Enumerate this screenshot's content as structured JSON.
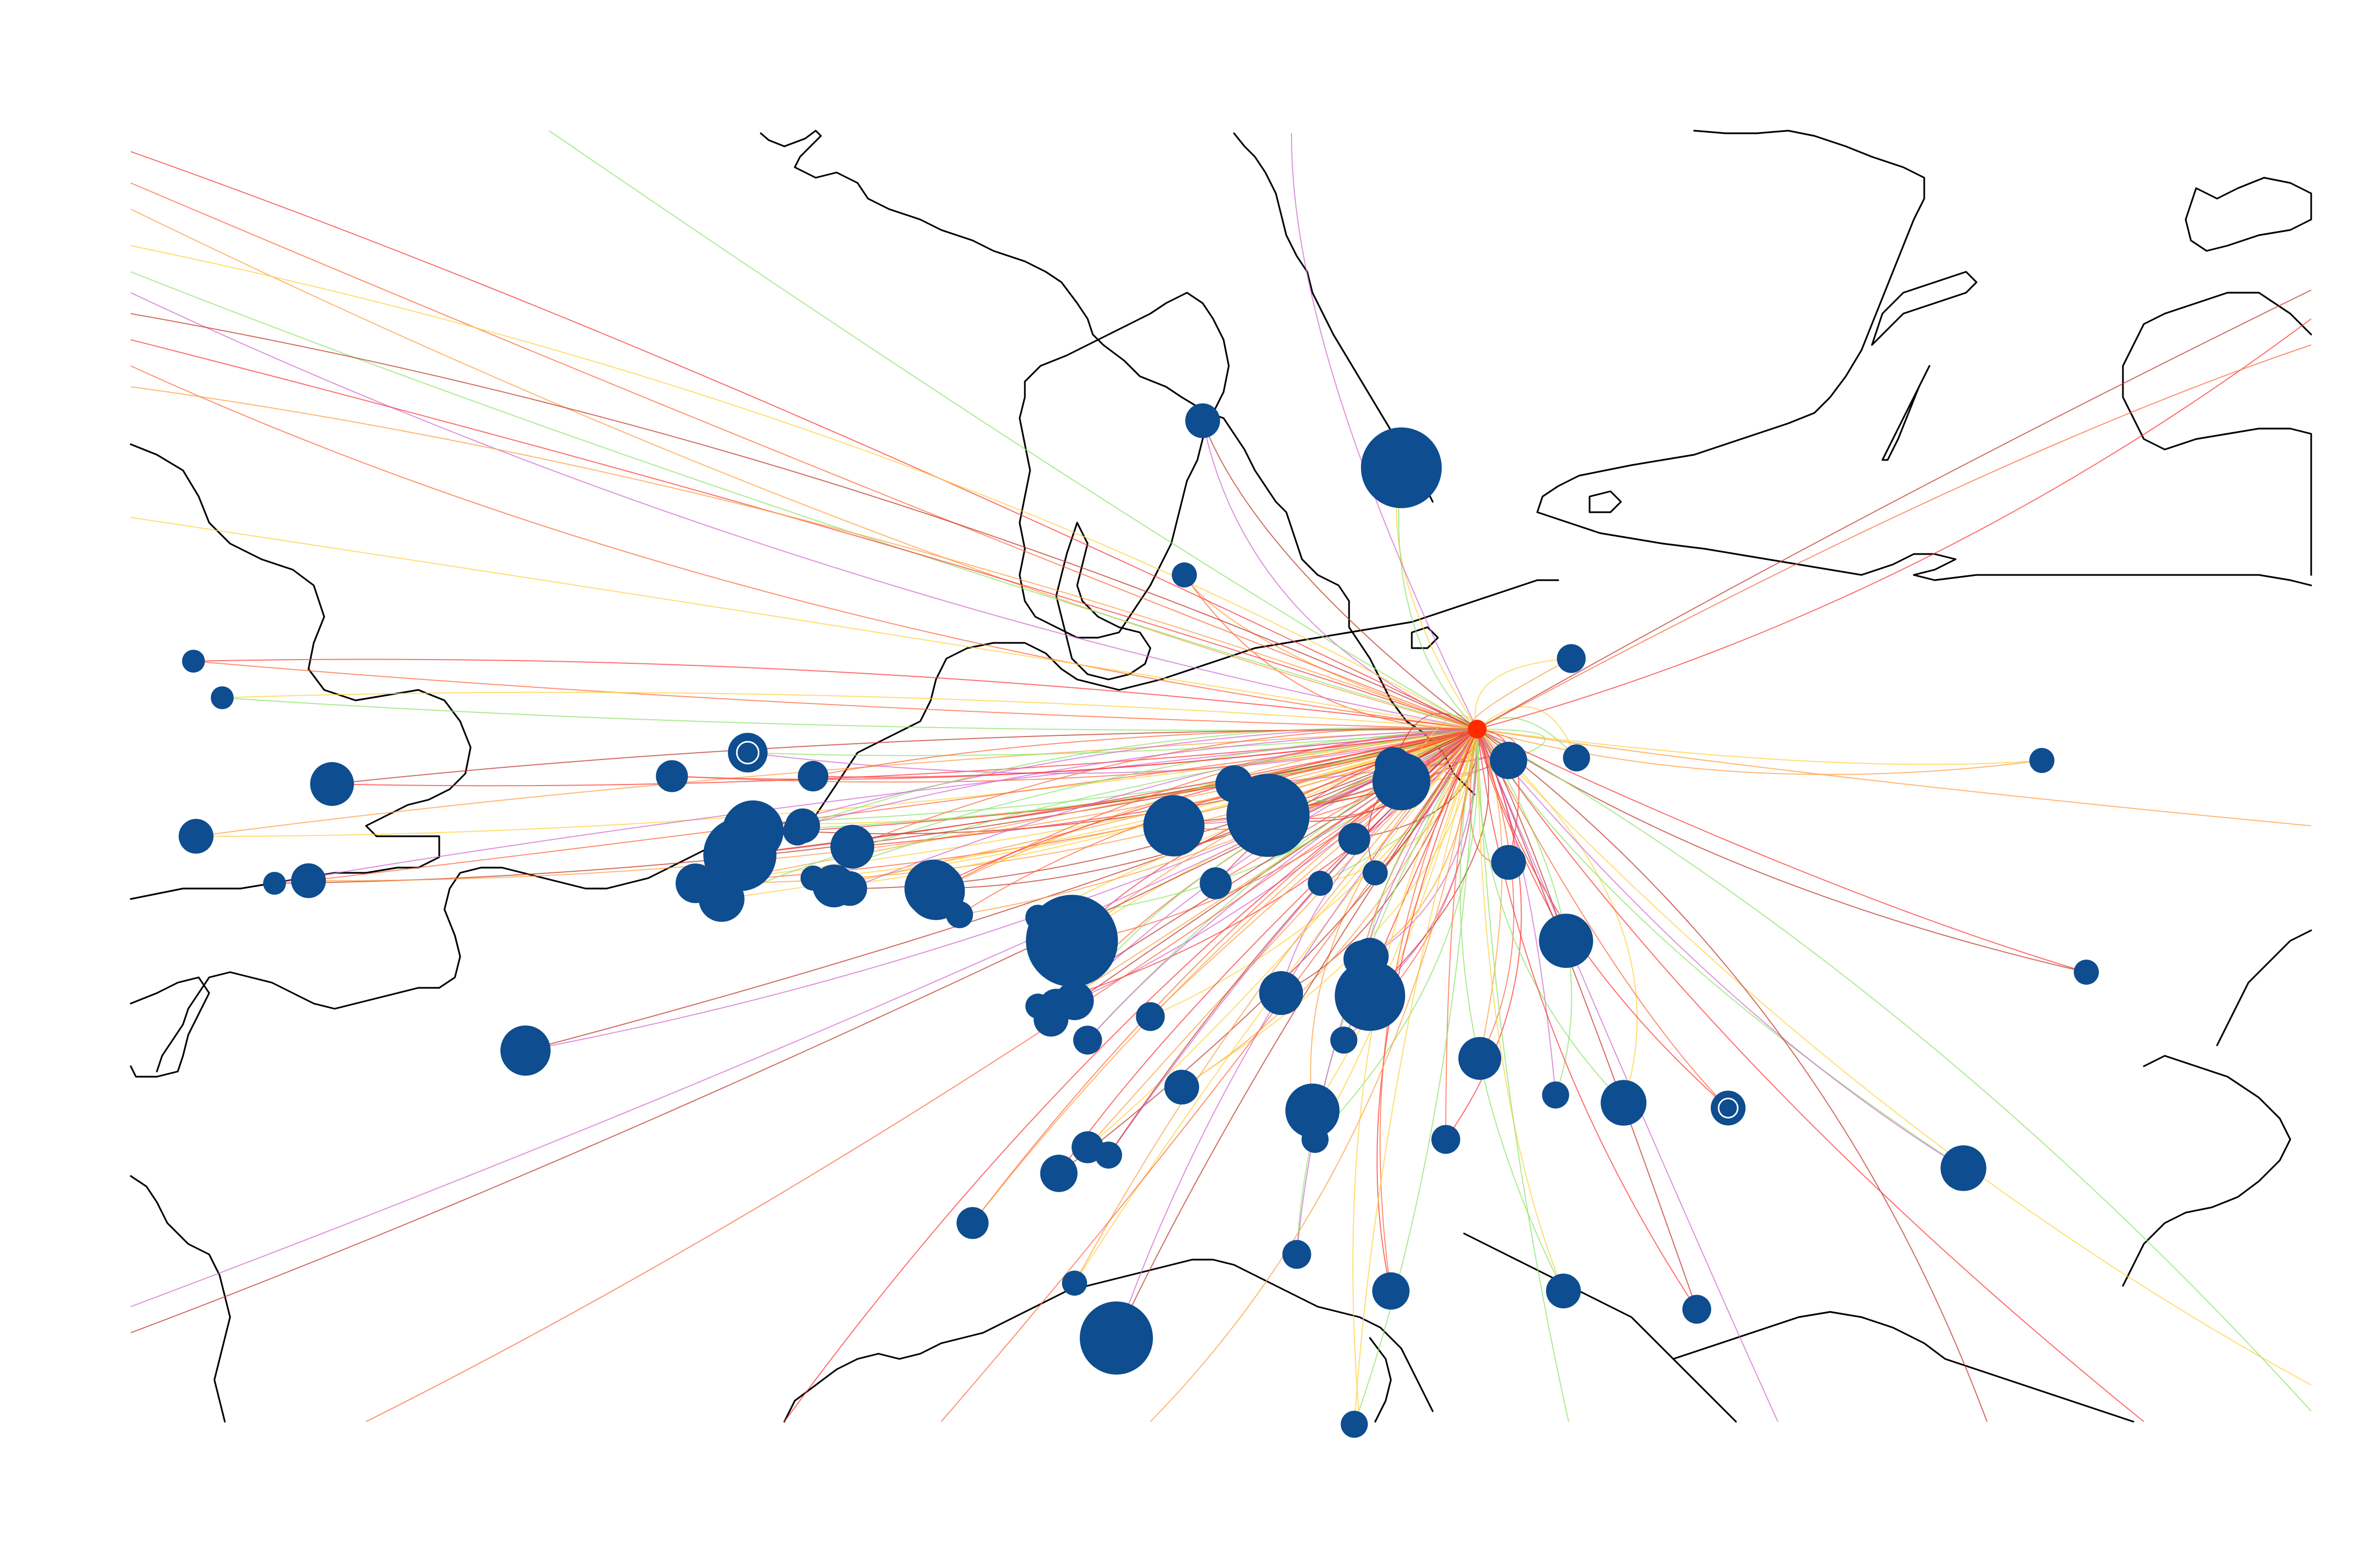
{
  "map": {
    "colors": {
      "background": "#ffffff",
      "coastline": "#000000",
      "city_marker": "#0e4d8f",
      "flow_palette": [
        "#ff3b3b",
        "#ff6a3d",
        "#ff9f40",
        "#ffd23f",
        "#8ee36b",
        "#d36bd0",
        "#c0392b"
      ]
    },
    "hub": {
      "name": "",
      "color": "#ff2a00"
    },
    "flows_per_origin": 2,
    "cities": [
      {
        "size": 3,
        "ring": false
      },
      {
        "size": 3,
        "ring": false
      },
      {
        "size": 18,
        "ring": false
      },
      {
        "size": 10,
        "ring": false
      },
      {
        "size": 3,
        "ring": false
      },
      {
        "size": 10,
        "ring": false
      },
      {
        "size": 14,
        "ring": true
      },
      {
        "size": 8,
        "ring": false
      },
      {
        "size": 6,
        "ring": false
      },
      {
        "size": 6,
        "ring": false
      },
      {
        "size": 14,
        "ring": false
      },
      {
        "size": 25,
        "ring": false
      },
      {
        "size": 18,
        "ring": false
      },
      {
        "size": 40,
        "ring": false
      },
      {
        "size": 18,
        "ring": false
      },
      {
        "size": 20,
        "ring": false
      },
      {
        "size": 60,
        "ring": false
      },
      {
        "size": 17,
        "ring": false
      },
      {
        "size": 10,
        "ring": false
      },
      {
        "size": 35,
        "ring": false
      },
      {
        "size": 10,
        "ring": false
      },
      {
        "size": 7,
        "ring": false
      },
      {
        "size": 4,
        "ring": false
      },
      {
        "size": 35,
        "ring": false
      },
      {
        "size": 100,
        "ring": false
      },
      {
        "size": 10,
        "ring": false
      },
      {
        "size": 10,
        "ring": false
      },
      {
        "size": 13,
        "ring": false
      },
      {
        "size": 70,
        "ring": false
      },
      {
        "size": 4,
        "ring": false
      },
      {
        "size": 4,
        "ring": false
      },
      {
        "size": 6,
        "ring": false
      },
      {
        "size": 10,
        "ring": false
      },
      {
        "size": 40,
        "ring": false
      },
      {
        "size": 12,
        "ring": false
      },
      {
        "size": 80,
        "ring": false
      },
      {
        "size": 4,
        "ring": false
      },
      {
        "size": 8,
        "ring": false
      },
      {
        "size": 35,
        "ring": false
      },
      {
        "size": 12,
        "ring": false
      },
      {
        "size": 4,
        "ring": false
      },
      {
        "size": 12,
        "ring": false
      },
      {
        "size": 10,
        "ring": false
      },
      {
        "size": 5,
        "ring": false
      },
      {
        "size": 30,
        "ring": false
      },
      {
        "size": 6,
        "ring": false
      },
      {
        "size": 10,
        "ring": false
      },
      {
        "size": 4,
        "ring": false
      },
      {
        "size": 6,
        "ring": false
      },
      {
        "size": 8,
        "ring": false
      },
      {
        "size": 75,
        "ring": false
      },
      {
        "size": 4,
        "ring": false
      },
      {
        "size": 30,
        "ring": false
      },
      {
        "size": 18,
        "ring": false
      },
      {
        "size": 12,
        "ring": false
      },
      {
        "size": 12,
        "ring": false
      },
      {
        "size": 5,
        "ring": false
      },
      {
        "size": 5,
        "ring": false
      },
      {
        "size": 4,
        "ring": false
      },
      {
        "size": 10,
        "ring": false
      },
      {
        "size": 55,
        "ring": false
      },
      {
        "size": 17,
        "ring": false
      },
      {
        "size": 5,
        "ring": false
      },
      {
        "size": 6,
        "ring": false
      },
      {
        "size": 20,
        "ring": false
      },
      {
        "size": 12,
        "ring": false
      },
      {
        "size": 8,
        "ring": false
      },
      {
        "size": 5,
        "ring": false
      },
      {
        "size": 8,
        "ring": false
      },
      {
        "size": 6,
        "ring": false
      },
      {
        "size": 12,
        "ring": false
      },
      {
        "size": 10,
        "ring": false
      },
      {
        "size": 6,
        "ring": false
      },
      {
        "size": 4,
        "ring": false
      },
      {
        "size": 60,
        "ring": false
      },
      {
        "size": 5,
        "ring": false
      },
      {
        "size": 20,
        "ring": false
      },
      {
        "size": 10,
        "ring": true
      },
      {
        "size": 5,
        "ring": false
      },
      {
        "size": 4,
        "ring": false
      },
      {
        "size": 4,
        "ring": false
      }
    ]
  }
}
